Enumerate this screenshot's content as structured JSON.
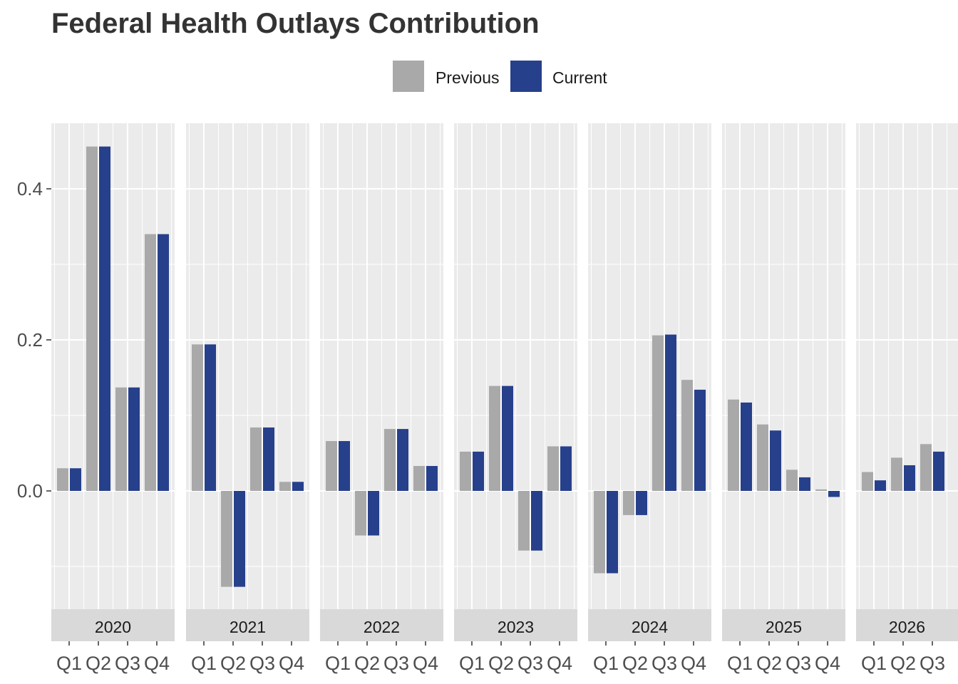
{
  "chart_data": {
    "type": "bar",
    "title": "Federal Health Outlays Contribution",
    "xlabel": "",
    "ylabel": "",
    "ylim": [
      -0.16,
      0.485
    ],
    "yticks": [
      0.0,
      0.2,
      0.4
    ],
    "ytick_labels": [
      "0.0",
      "0.2",
      "0.4"
    ],
    "legend_position": "top",
    "grid": true,
    "colors": {
      "Previous": "#a9a9a9",
      "Current": "#27408b",
      "panel": "#ebebeb",
      "strip": "#d9d9d9"
    },
    "legend": [
      "Previous",
      "Current"
    ],
    "facets": [
      {
        "label": "2020",
        "categories": [
          "Q1",
          "Q2",
          "Q3",
          "Q4"
        ],
        "series": [
          {
            "name": "Previous",
            "values": [
              0.03,
              0.456,
              0.137,
              0.34
            ]
          },
          {
            "name": "Current",
            "values": [
              0.03,
              0.456,
              0.137,
              0.34
            ]
          }
        ]
      },
      {
        "label": "2021",
        "categories": [
          "Q1",
          "Q2",
          "Q3",
          "Q4"
        ],
        "series": [
          {
            "name": "Previous",
            "values": [
              0.194,
              -0.127,
              0.084,
              0.012
            ]
          },
          {
            "name": "Current",
            "values": [
              0.194,
              -0.127,
              0.084,
              0.012
            ]
          }
        ]
      },
      {
        "label": "2022",
        "categories": [
          "Q1",
          "Q2",
          "Q3",
          "Q4"
        ],
        "series": [
          {
            "name": "Previous",
            "values": [
              0.066,
              -0.059,
              0.082,
              0.033
            ]
          },
          {
            "name": "Current",
            "values": [
              0.066,
              -0.059,
              0.082,
              0.033
            ]
          }
        ]
      },
      {
        "label": "2023",
        "categories": [
          "Q1",
          "Q2",
          "Q3",
          "Q4"
        ],
        "series": [
          {
            "name": "Previous",
            "values": [
              0.052,
              0.139,
              -0.079,
              0.059
            ]
          },
          {
            "name": "Current",
            "values": [
              0.052,
              0.139,
              -0.079,
              0.059
            ]
          }
        ]
      },
      {
        "label": "2024",
        "categories": [
          "Q1",
          "Q2",
          "Q3",
          "Q4"
        ],
        "series": [
          {
            "name": "Previous",
            "values": [
              -0.109,
              -0.032,
              0.206,
              0.147
            ]
          },
          {
            "name": "Current",
            "values": [
              -0.109,
              -0.032,
              0.207,
              0.134
            ]
          }
        ]
      },
      {
        "label": "2025",
        "categories": [
          "Q1",
          "Q2",
          "Q3",
          "Q4"
        ],
        "series": [
          {
            "name": "Previous",
            "values": [
              0.121,
              0.088,
              0.028,
              0.002
            ]
          },
          {
            "name": "Current",
            "values": [
              0.117,
              0.08,
              0.018,
              -0.008
            ]
          }
        ]
      },
      {
        "label": "2026",
        "categories": [
          "Q1",
          "Q2",
          "Q3"
        ],
        "series": [
          {
            "name": "Previous",
            "values": [
              0.025,
              0.044,
              0.062
            ]
          },
          {
            "name": "Current",
            "values": [
              0.014,
              0.034,
              0.052
            ]
          }
        ]
      }
    ]
  }
}
